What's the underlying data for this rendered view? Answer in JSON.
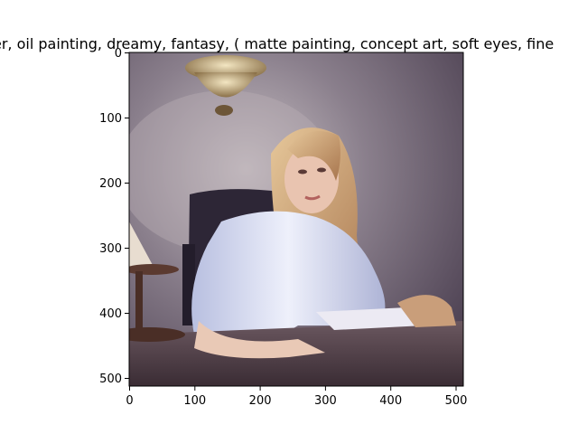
{
  "figure": {
    "title": "er,  oil painting, dreamy, fantasy, ( matte painting, concept art, soft eyes, fine",
    "image_description_icon": "painting-woman-at-desk",
    "axes": {
      "xlim": [
        0,
        512
      ],
      "ylim": [
        512,
        0
      ],
      "x_ticks": [
        "0",
        "100",
        "200",
        "300",
        "400",
        "500"
      ],
      "y_ticks": [
        "0",
        "100",
        "200",
        "300",
        "400",
        "500"
      ]
    }
  }
}
